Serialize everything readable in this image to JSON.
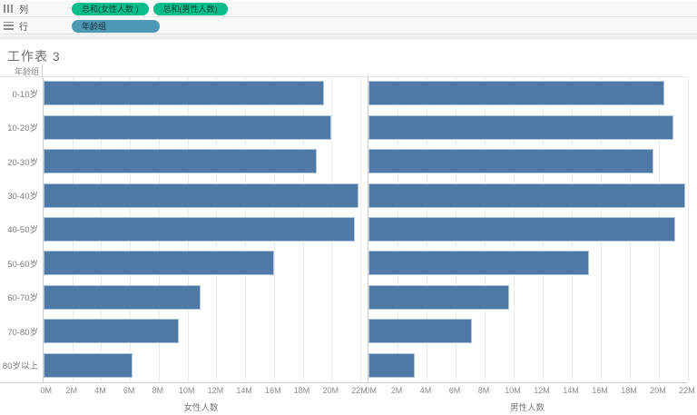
{
  "title": "工作表 3",
  "shelves": {
    "columns": {
      "label": "列",
      "pills": [
        {
          "label": "总和(女性人数 )",
          "type": "measure"
        },
        {
          "label": "总和(男性人数)",
          "type": "measure"
        }
      ]
    },
    "rows": {
      "label": "行",
      "pills": [
        {
          "label": "年龄组",
          "type": "dimension"
        }
      ]
    }
  },
  "colors": {
    "bar": "#4e79a7",
    "measure_pill": "#0cbd8c",
    "dimension_pill": "#4e98b5",
    "gridline": "#ececec"
  },
  "chart_data": {
    "type": "bar",
    "orientation": "horizontal",
    "row_header": "年龄组",
    "categories": [
      "0-10岁",
      "10-20岁",
      "20-30岁",
      "30-40岁",
      "40-50岁",
      "50-60岁",
      "60-70岁",
      "70-80岁",
      "80岁以上"
    ],
    "series": [
      {
        "name": "女性人数",
        "values": [
          19.5,
          20.0,
          19.0,
          21.9,
          21.6,
          16.0,
          10.9,
          9.4,
          6.2
        ]
      },
      {
        "name": "男性人数",
        "values": [
          20.4,
          21.0,
          19.6,
          21.8,
          21.1,
          15.2,
          9.7,
          7.1,
          3.2
        ]
      }
    ],
    "xlim": [
      0,
      22
    ],
    "tick_step": 2,
    "x_ticks": [
      "0M",
      "2M",
      "4M",
      "6M",
      "8M",
      "10M",
      "12M",
      "14M",
      "16M",
      "18M",
      "20M",
      "22M"
    ],
    "grid": true,
    "legend": "none",
    "units": "M"
  }
}
